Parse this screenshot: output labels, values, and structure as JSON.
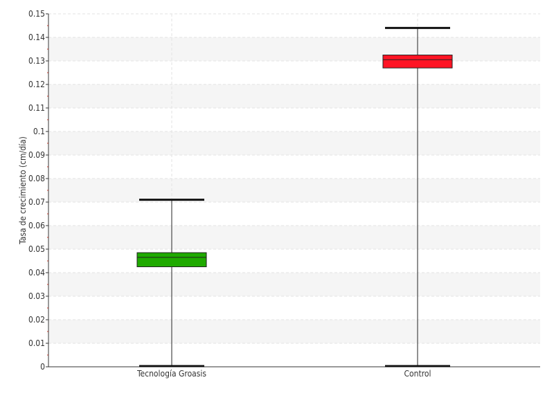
{
  "chart_data": {
    "type": "boxplot",
    "title": "",
    "xlabel": "",
    "ylabel": "Tasa de crecimiento (cm/día)",
    "ylim": [
      0,
      0.15
    ],
    "yticks": [
      0,
      0.01,
      0.02,
      0.03,
      0.04,
      0.05,
      0.06,
      0.07,
      0.08,
      0.09,
      0.1,
      0.11,
      0.12,
      0.13,
      0.14,
      0.15
    ],
    "ytick_labels": [
      "0",
      "0.01",
      "0.02",
      "0.03",
      "0.04",
      "0.05",
      "0.06",
      "0.07",
      "0.08",
      "0.09",
      "0.1",
      "0.11",
      "0.12",
      "0.13",
      "0.14",
      "0.15"
    ],
    "grid": true,
    "categories": [
      "Tecnología Groasis",
      "Control"
    ],
    "boxes": [
      {
        "category": "Tecnología Groasis",
        "min": 0.0,
        "q1": 0.0425,
        "median": 0.0465,
        "q3": 0.0485,
        "max": 0.071,
        "color": "#1faa00"
      },
      {
        "category": "Control",
        "min": 0.0,
        "q1": 0.127,
        "median": 0.1305,
        "q3": 0.1325,
        "max": 0.144,
        "color": "#ff1424"
      }
    ]
  }
}
